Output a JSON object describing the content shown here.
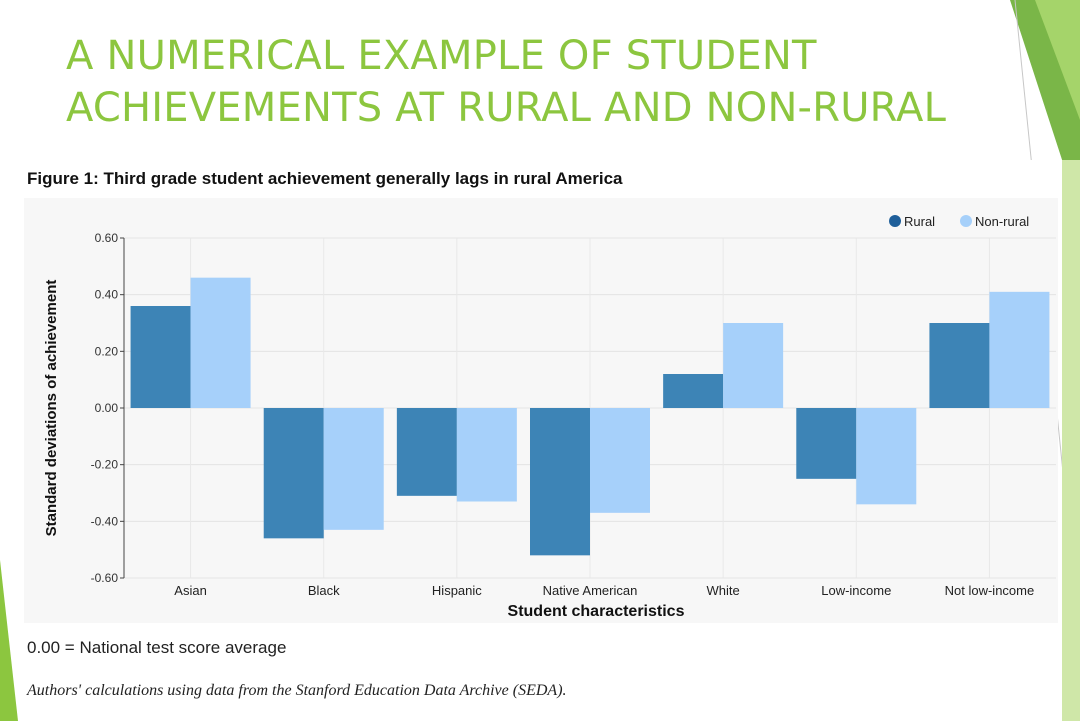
{
  "slide": {
    "title": "A NUMERICAL EXAMPLE OF STUDENT ACHIEVEMENTS AT RURAL AND NON-RURAL"
  },
  "figure": {
    "title": "Figure 1: Third grade student achievement generally lags in rural America",
    "note": "0.00 = National test score average",
    "source": "Authors' calculations using data from the Stanford Education Data Archive (SEDA)."
  },
  "colors": {
    "accent": "#8cc63f",
    "rural": "#3d84b6",
    "non_rural": "#a6d0fa",
    "legend_rural": "#1f5f9a"
  },
  "chart_data": {
    "type": "bar",
    "categories": [
      "Asian",
      "Black",
      "Hispanic",
      "Native American",
      "White",
      "Low-income",
      "Not low-income"
    ],
    "series": [
      {
        "name": "Rural",
        "values": [
          0.36,
          -0.46,
          -0.31,
          -0.52,
          0.12,
          -0.25,
          0.3
        ]
      },
      {
        "name": "Non-rural",
        "values": [
          0.46,
          -0.43,
          -0.33,
          -0.37,
          0.3,
          -0.34,
          0.41
        ]
      }
    ],
    "xlabel": "Student characteristics",
    "ylabel": "Standard deviations of achievement",
    "ylim": [
      -0.6,
      0.6
    ],
    "yticks": [
      "0.60",
      "0.40",
      "0.20",
      "0.00",
      "-0.20",
      "-0.40",
      "-0.60"
    ],
    "legend": "top-right",
    "grid": true
  }
}
